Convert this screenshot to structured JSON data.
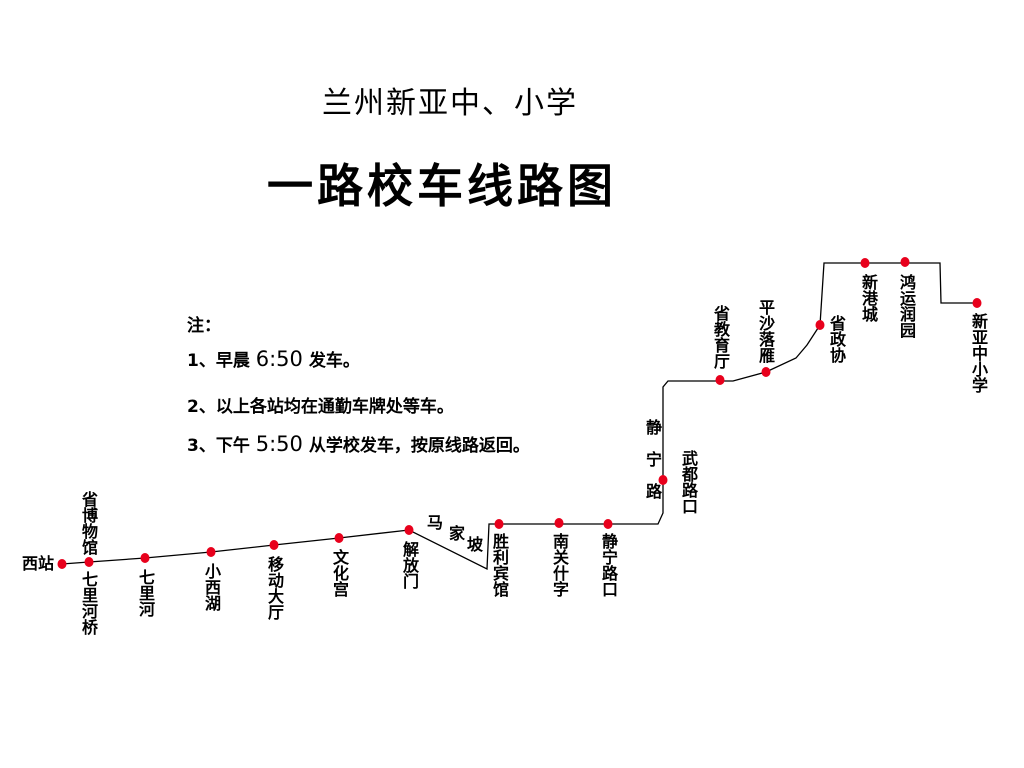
{
  "title": {
    "line1": "兰州新亚中、小学",
    "line2": "一路校车线路图"
  },
  "notes": {
    "heading": "注：",
    "items": [
      {
        "prefix": "1、早晨 ",
        "time": "6:50",
        "suffix": " 发车。"
      },
      {
        "prefix": "2、以上各站均在通勤车牌处等车。",
        "time": "",
        "suffix": ""
      },
      {
        "prefix": "3、下午 ",
        "time": "5:50",
        "suffix": " 从学校发车，按原线路返回。"
      }
    ]
  },
  "colors": {
    "stop": "#e8001c",
    "route": "#000000"
  },
  "road_labels": {
    "majiapo": [
      "马",
      "家",
      "坡"
    ],
    "jingning_road": [
      "静",
      "宁",
      "路"
    ]
  },
  "stops": [
    {
      "name": "西站"
    },
    {
      "name": "省博物馆",
      "alt_name": "七里河桥"
    },
    {
      "name": "七里河"
    },
    {
      "name": "小西湖"
    },
    {
      "name": "移动大厅"
    },
    {
      "name": "文化宫"
    },
    {
      "name": "解放门"
    },
    {
      "name": "胜利宾馆"
    },
    {
      "name": "南关什字"
    },
    {
      "name": "静宁路口"
    },
    {
      "name": "武都路口"
    },
    {
      "name": "省教育厅"
    },
    {
      "name": "平沙落雁"
    },
    {
      "name": "省政协"
    },
    {
      "name": "新港城"
    },
    {
      "name": "鸿运润园"
    },
    {
      "name": "新亚中小学"
    }
  ]
}
